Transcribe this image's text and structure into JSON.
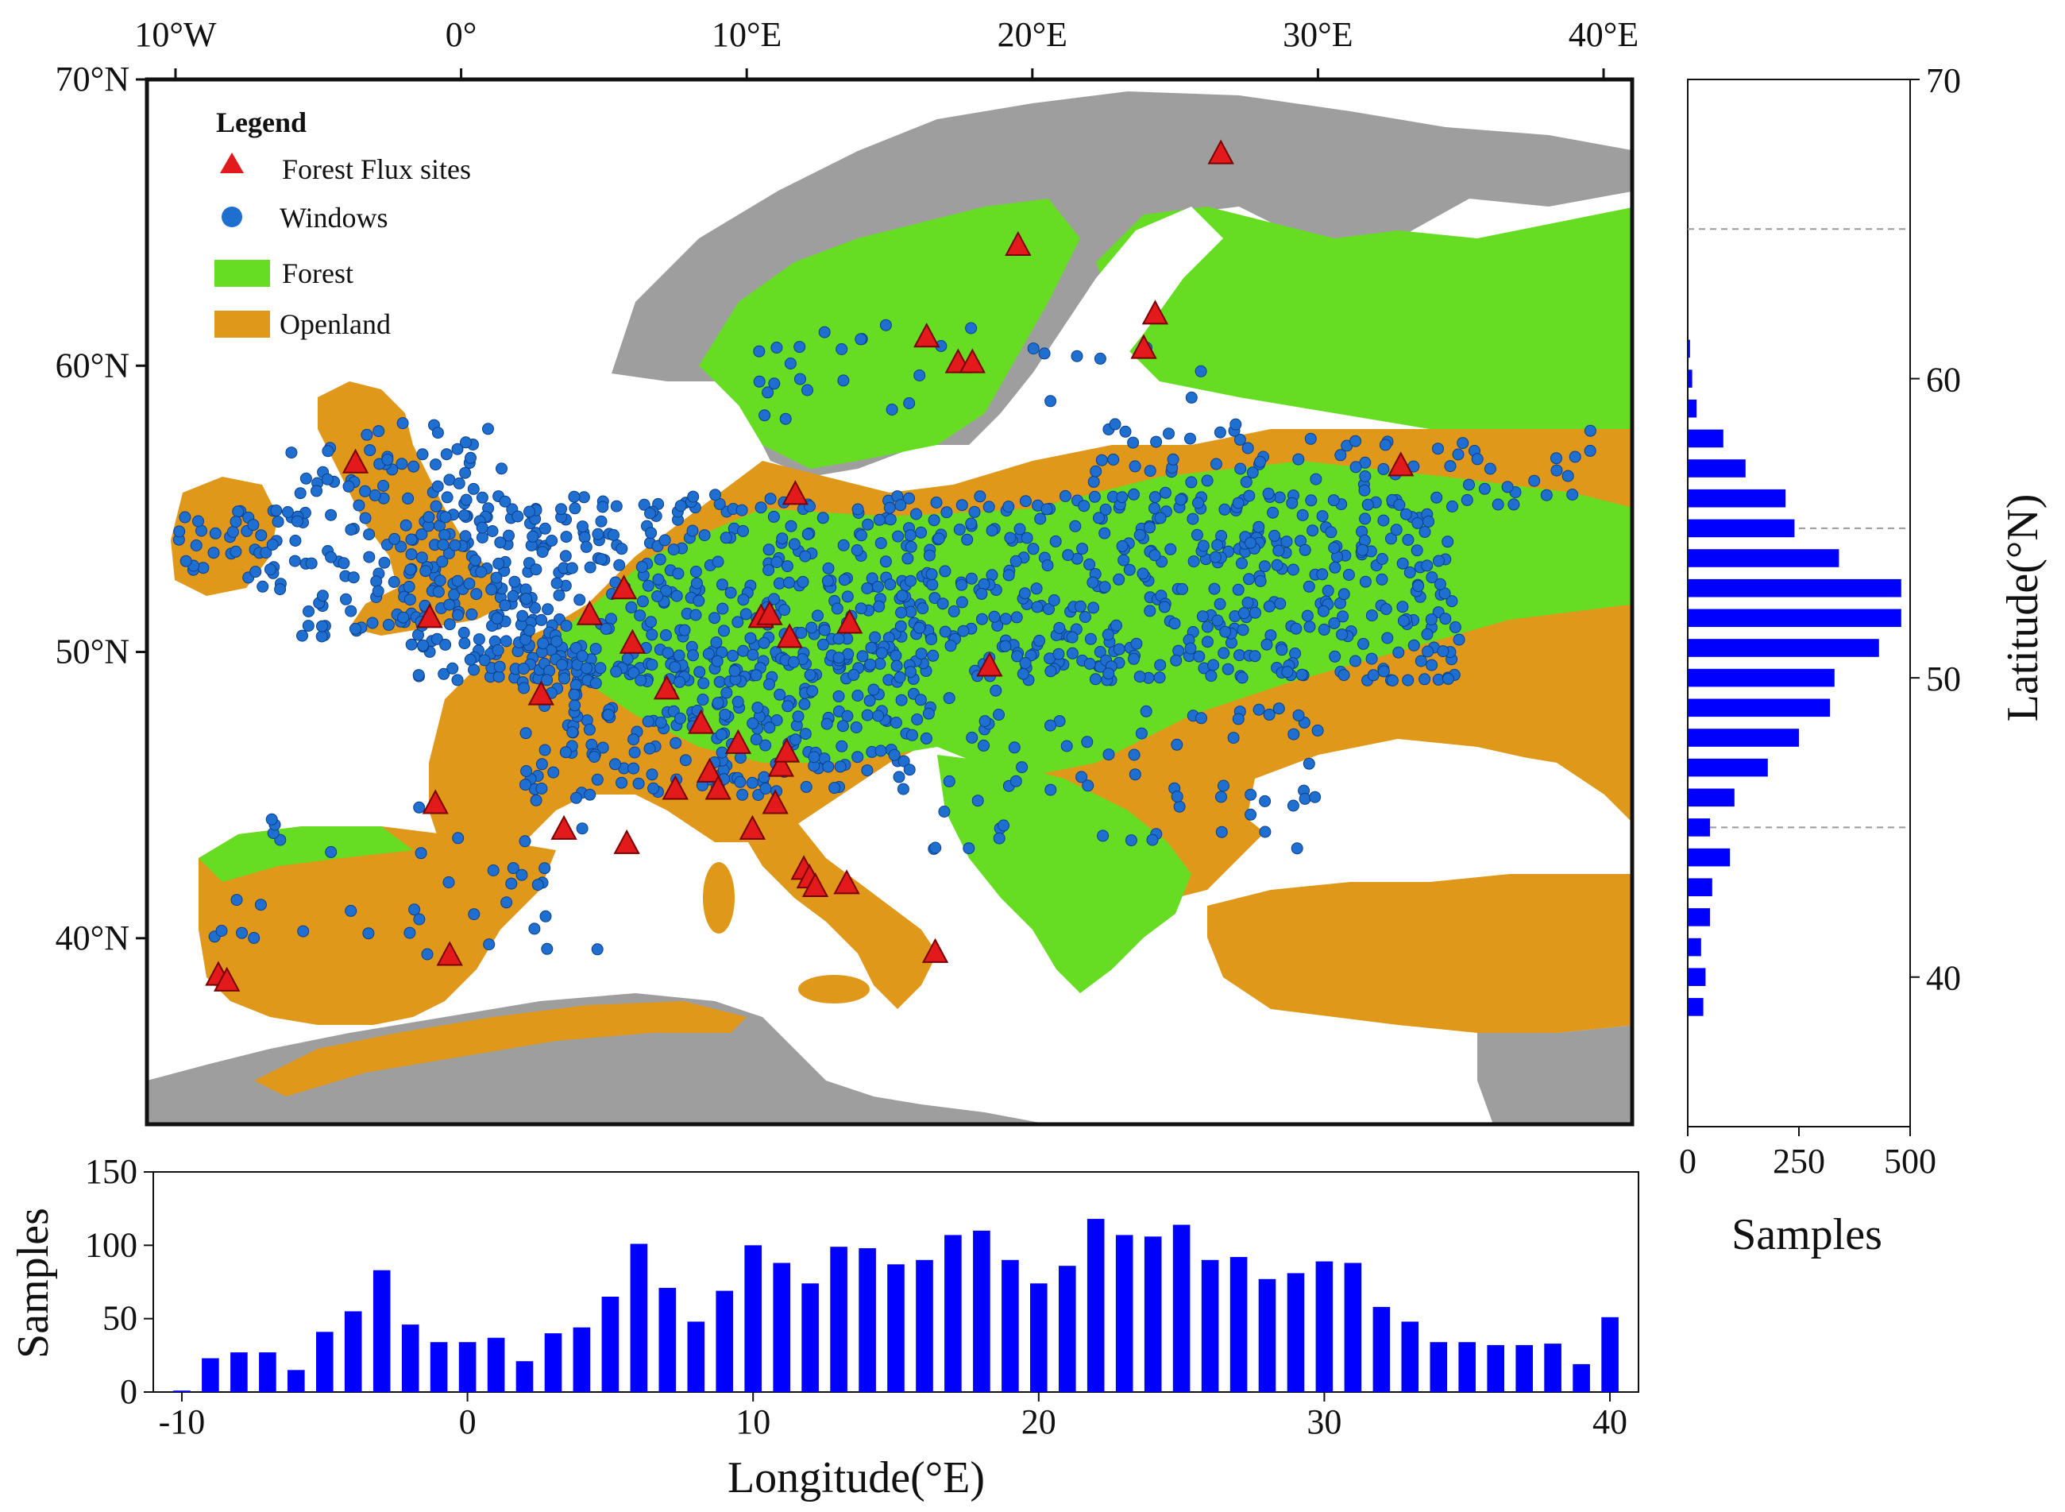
{
  "map": {
    "lon_ticks_top": [
      "10°W",
      "0°",
      "10°E",
      "20°E",
      "30°E",
      "40°E"
    ],
    "lat_ticks_left": [
      "70°N",
      "60°N",
      "50°N",
      "40°N"
    ],
    "extent": {
      "lon": [
        -11,
        41
      ],
      "lat": [
        33.5,
        70
      ]
    },
    "legend": {
      "title": "Legend",
      "items": [
        {
          "label": "Forest Flux sites",
          "symbol": "triangle",
          "color": "#e31a1c"
        },
        {
          "label": "Windows",
          "symbol": "circle",
          "color": "#1f6fd1"
        },
        {
          "label": "Forest",
          "symbol": "patch",
          "color": "#66dd22"
        },
        {
          "label": "Openland",
          "symbol": "patch",
          "color": "#e0981a"
        }
      ]
    },
    "colors": {
      "forest": "#66dd22",
      "openland": "#e0981a",
      "other": "#9e9e9e",
      "water": "#ffffff",
      "windows": "#1f6fd1",
      "sites": "#e31a1c"
    },
    "flux_sites": [
      {
        "lon": -8.5,
        "lat": 38.7
      },
      {
        "lon": -8.2,
        "lat": 38.5
      },
      {
        "lon": -0.4,
        "lat": 39.4
      },
      {
        "lon": -3.7,
        "lat": 56.6
      },
      {
        "lon": -1.1,
        "lat": 51.2
      },
      {
        "lon": -0.9,
        "lat": 44.7
      },
      {
        "lon": 2.8,
        "lat": 48.5
      },
      {
        "lon": 3.6,
        "lat": 43.8
      },
      {
        "lon": 4.5,
        "lat": 51.3
      },
      {
        "lon": 5.7,
        "lat": 52.2
      },
      {
        "lon": 6.0,
        "lat": 50.3
      },
      {
        "lon": 5.8,
        "lat": 43.3
      },
      {
        "lon": 7.2,
        "lat": 48.7
      },
      {
        "lon": 7.5,
        "lat": 45.2
      },
      {
        "lon": 8.4,
        "lat": 47.5
      },
      {
        "lon": 8.7,
        "lat": 45.8
      },
      {
        "lon": 9.0,
        "lat": 45.2
      },
      {
        "lon": 9.7,
        "lat": 46.8
      },
      {
        "lon": 10.2,
        "lat": 43.8
      },
      {
        "lon": 10.5,
        "lat": 51.2
      },
      {
        "lon": 10.8,
        "lat": 51.3
      },
      {
        "lon": 11.0,
        "lat": 44.7
      },
      {
        "lon": 11.2,
        "lat": 46.0
      },
      {
        "lon": 11.4,
        "lat": 46.5
      },
      {
        "lon": 11.5,
        "lat": 50.5
      },
      {
        "lon": 11.7,
        "lat": 55.5
      },
      {
        "lon": 12.0,
        "lat": 42.4
      },
      {
        "lon": 12.2,
        "lat": 42.1
      },
      {
        "lon": 12.4,
        "lat": 41.8
      },
      {
        "lon": 13.5,
        "lat": 41.9
      },
      {
        "lon": 13.6,
        "lat": 51.0
      },
      {
        "lon": 16.3,
        "lat": 61.0
      },
      {
        "lon": 16.6,
        "lat": 39.5
      },
      {
        "lon": 17.4,
        "lat": 60.1
      },
      {
        "lon": 17.9,
        "lat": 60.1
      },
      {
        "lon": 18.5,
        "lat": 49.5
      },
      {
        "lon": 19.5,
        "lat": 64.2
      },
      {
        "lon": 23.9,
        "lat": 60.6
      },
      {
        "lon": 24.3,
        "lat": 61.8
      },
      {
        "lon": 26.6,
        "lat": 67.4
      },
      {
        "lon": 32.9,
        "lat": 56.5
      }
    ]
  },
  "chart_data": [
    {
      "type": "bar",
      "orientation": "vertical",
      "xlabel": "Longitude(°E)",
      "ylabel": "Samples",
      "xlim": [
        -11,
        41
      ],
      "ylim": [
        0,
        150
      ],
      "xticks": [
        "-10",
        "0",
        "10",
        "20",
        "30",
        "40"
      ],
      "yticks": [
        "0",
        "50",
        "100",
        "150"
      ],
      "x": [
        -10,
        -9,
        -8,
        -7,
        -6,
        -5,
        -4,
        -3,
        -2,
        -1,
        0,
        1,
        2,
        3,
        4,
        5,
        6,
        7,
        8,
        9,
        10,
        11,
        12,
        13,
        14,
        15,
        16,
        17,
        18,
        19,
        20,
        21,
        22,
        23,
        24,
        25,
        26,
        27,
        28,
        29,
        30,
        31,
        32,
        33,
        34,
        35,
        36,
        37,
        38,
        39,
        40
      ],
      "values": [
        1,
        23,
        27,
        27,
        15,
        41,
        55,
        83,
        46,
        34,
        34,
        37,
        21,
        40,
        44,
        65,
        101,
        71,
        48,
        69,
        100,
        88,
        74,
        99,
        98,
        87,
        90,
        107,
        110,
        90,
        74,
        86,
        118,
        107,
        106,
        114,
        90,
        92,
        77,
        81,
        89,
        88,
        58,
        48,
        34,
        34,
        32,
        32,
        33,
        19,
        51
      ]
    },
    {
      "type": "bar",
      "orientation": "horizontal",
      "xlabel": "Samples",
      "ylabel": "Latitude(°N)",
      "xlim": [
        0,
        500
      ],
      "ylim": [
        35,
        70
      ],
      "xticks": [
        "0",
        "250",
        "500"
      ],
      "yticks": [
        "40",
        "50",
        "60",
        "70"
      ],
      "y": [
        39,
        40,
        41,
        42,
        43,
        44,
        45,
        46,
        47,
        48,
        49,
        50,
        51,
        52,
        53,
        54,
        55,
        56,
        57,
        58,
        59,
        60,
        61
      ],
      "values": [
        35,
        40,
        30,
        50,
        55,
        95,
        50,
        105,
        180,
        250,
        320,
        330,
        430,
        480,
        480,
        340,
        240,
        220,
        130,
        80,
        20,
        10,
        5
      ]
    }
  ]
}
